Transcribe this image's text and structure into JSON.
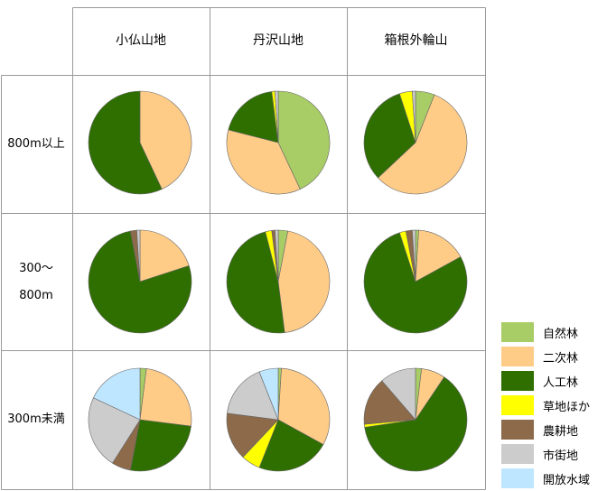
{
  "chart_data": {
    "type": "pie",
    "columns": [
      "小仏山地",
      "丹沢山地",
      "箱根外輪山"
    ],
    "rows": [
      [
        "800m以上"
      ],
      [
        "300〜",
        "800m"
      ],
      [
        "300m未満"
      ]
    ],
    "categories": [
      "自然林",
      "二次林",
      "人工林",
      "草地ほか",
      "農耕地",
      "市街地",
      "開放水域"
    ],
    "colors": [
      "#a8cc66",
      "#ffcc88",
      "#2e6f00",
      "#ffff00",
      "#8c6a4a",
      "#cccccc",
      "#bfe6ff"
    ],
    "pies": [
      [
        {
          "name": "小仏山地",
          "values": [
            0,
            43,
            57,
            0,
            0,
            0,
            0
          ]
        },
        {
          "name": "丹沢山地",
          "values": [
            43,
            36,
            19,
            1,
            0,
            1,
            0
          ]
        },
        {
          "name": "箱根外輪山",
          "values": [
            6,
            57,
            32,
            4,
            0,
            1,
            0
          ]
        }
      ],
      [
        {
          "name": "小仏山地",
          "values": [
            0,
            20,
            77,
            0,
            2,
            1,
            0
          ]
        },
        {
          "name": "丹沢山地",
          "values": [
            3,
            45,
            48,
            2,
            1,
            1,
            0
          ]
        },
        {
          "name": "箱根外輪山",
          "values": [
            1,
            16,
            78,
            2,
            2,
            1,
            0
          ]
        }
      ],
      [
        {
          "name": "小仏山地",
          "values": [
            2,
            25,
            26,
            0,
            6,
            23,
            18
          ]
        },
        {
          "name": "丹沢山地",
          "values": [
            1,
            32,
            23,
            6,
            15,
            17,
            6
          ]
        },
        {
          "name": "箱根外輪山",
          "values": [
            2,
            8,
            67,
            1,
            16,
            12,
            0
          ]
        }
      ]
    ]
  }
}
